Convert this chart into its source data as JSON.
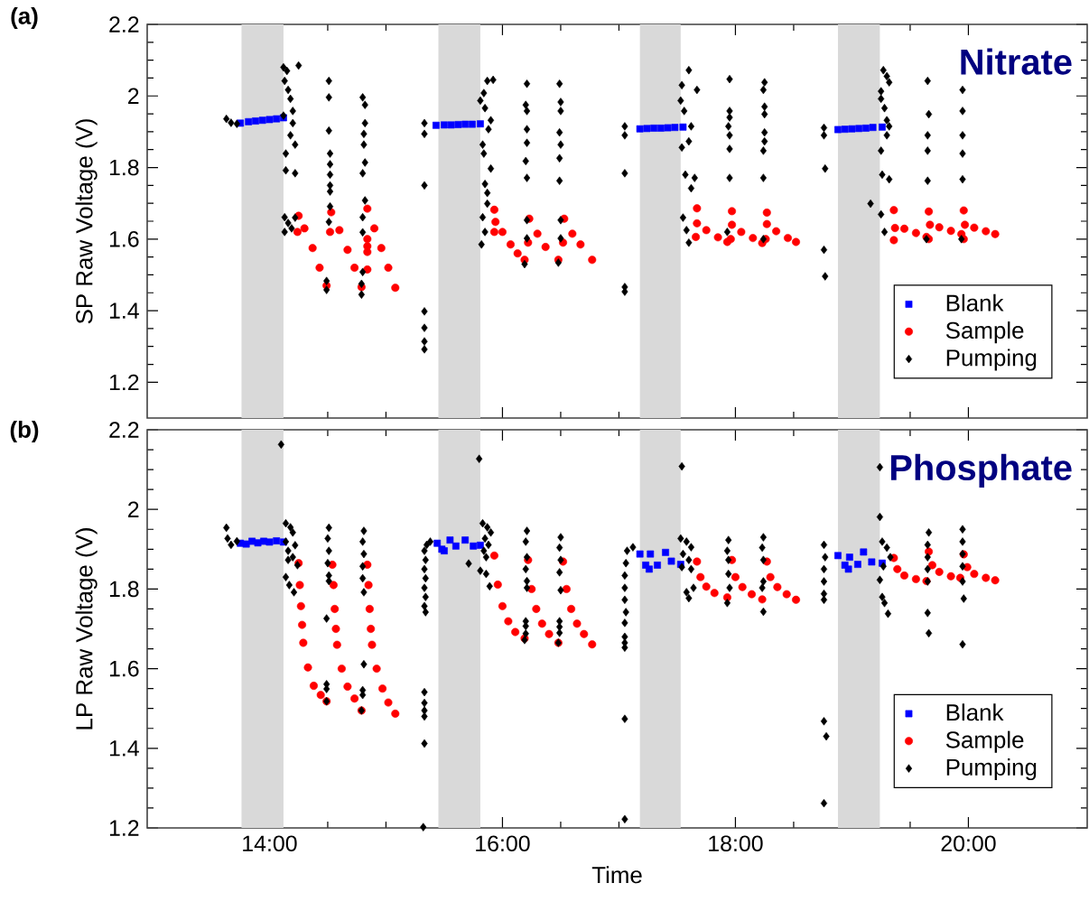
{
  "chart_data": [
    {
      "type": "scatter",
      "title": "Nitrate",
      "ylabel": "SP Raw Voltage (V)",
      "annotations": [
        "(a)"
      ],
      "tick_labels": "y",
      "legend": "bottom right",
      "xlim": [
        12.95,
        21.02
      ],
      "ylim": [
        1.1,
        2.2
      ],
      "xticks": [
        {
          "value": 14,
          "label": null
        },
        {
          "value": 16,
          "label": null
        },
        {
          "value": 18,
          "label": null
        },
        {
          "value": 20,
          "label": null
        }
      ],
      "yticks": [
        1.2,
        1.4,
        1.6,
        1.8,
        2,
        2.2
      ],
      "bands": [
        {
          "axis": "x",
          "from": 13.76,
          "to": 14.12,
          "color": "#d9d9d9"
        },
        {
          "axis": "x",
          "from": 15.45,
          "to": 15.81,
          "color": "#d9d9d9"
        },
        {
          "axis": "x",
          "from": 17.18,
          "to": 17.53,
          "color": "#d9d9d9"
        },
        {
          "axis": "x",
          "from": 18.88,
          "to": 19.24,
          "color": "#d9d9d9"
        }
      ],
      "series": [
        {
          "name": "Blank",
          "marker": "square",
          "color": "#0000ff",
          "x": [
            13.75,
            13.82,
            13.88,
            13.94,
            14.0,
            14.06,
            14.12,
            15.43,
            15.5,
            15.56,
            15.62,
            15.68,
            15.74,
            15.81,
            17.18,
            17.24,
            17.3,
            17.36,
            17.42,
            17.48,
            17.55,
            18.88,
            18.94,
            19.0,
            19.06,
            19.12,
            19.18,
            19.26
          ],
          "values": [
            1.924,
            1.928,
            1.93,
            1.932,
            1.934,
            1.936,
            1.939,
            1.918,
            1.919,
            1.919,
            1.92,
            1.921,
            1.921,
            1.922,
            1.908,
            1.909,
            1.91,
            1.91,
            1.911,
            1.912,
            1.913,
            1.906,
            1.907,
            1.908,
            1.909,
            1.91,
            1.912,
            1.913
          ]
        },
        {
          "name": "Sample",
          "marker": "circle",
          "color": "#ff0000",
          "x": [
            14.24,
            14.25,
            14.3,
            14.37,
            14.43,
            14.49,
            14.52,
            14.53,
            14.6,
            14.67,
            14.73,
            14.79,
            14.84,
            14.84,
            14.84,
            14.84,
            14.84,
            14.9,
            14.96,
            15.02,
            15.08,
            15.93,
            15.93,
            15.94,
            16.0,
            16.07,
            16.13,
            16.19,
            16.22,
            16.23,
            16.3,
            16.37,
            16.48,
            16.52,
            16.53,
            16.6,
            16.67,
            16.77,
            17.67,
            17.66,
            17.67,
            17.75,
            17.85,
            17.93,
            17.97,
            17.96,
            17.97,
            18.05,
            18.15,
            18.23,
            18.27,
            18.26,
            18.27,
            18.35,
            18.45,
            18.52,
            19.36,
            19.36,
            19.37,
            19.45,
            19.55,
            19.64,
            19.66,
            19.66,
            19.67,
            19.75,
            19.85,
            19.94,
            19.96,
            19.96,
            19.97,
            20.05,
            20.15,
            20.23
          ],
          "values": [
            1.62,
            1.665,
            1.63,
            1.575,
            1.52,
            1.47,
            1.62,
            1.675,
            1.625,
            1.57,
            1.52,
            1.466,
            1.515,
            1.564,
            1.58,
            1.6,
            1.685,
            1.63,
            1.575,
            1.52,
            1.464,
            1.682,
            1.62,
            1.648,
            1.62,
            1.585,
            1.56,
            1.542,
            1.59,
            1.657,
            1.615,
            1.578,
            1.542,
            1.59,
            1.657,
            1.615,
            1.585,
            1.542,
            1.686,
            1.606,
            1.644,
            1.625,
            1.605,
            1.592,
            1.678,
            1.6,
            1.64,
            1.62,
            1.603,
            1.589,
            1.674,
            1.6,
            1.642,
            1.622,
            1.603,
            1.592,
            1.681,
            1.597,
            1.631,
            1.629,
            1.617,
            1.606,
            1.677,
            1.6,
            1.64,
            1.633,
            1.623,
            1.614,
            1.68,
            1.6,
            1.64,
            1.632,
            1.622,
            1.614
          ]
        },
        {
          "name": "Pumping",
          "marker": "diamond",
          "color": "#000000",
          "x": [
            13.63,
            13.67,
            13.72,
            14.12,
            14.15,
            14.13,
            14.16,
            14.18,
            14.2,
            14.12,
            14.2,
            14.18,
            14.22,
            14.14,
            14.14,
            14.22,
            14.25,
            14.13,
            14.16,
            14.19,
            14.13,
            14.22,
            14.51,
            14.51,
            14.51,
            14.52,
            14.52,
            14.52,
            14.52,
            14.52,
            14.52,
            14.51,
            14.49,
            14.49,
            14.8,
            14.82,
            14.82,
            14.81,
            14.81,
            14.82,
            14.8,
            14.82,
            14.8,
            14.8,
            14.8,
            14.79,
            14.79,
            15.33,
            15.33,
            15.33,
            15.33,
            15.33,
            15.33,
            15.33,
            15.87,
            15.92,
            15.84,
            15.81,
            15.85,
            15.9,
            15.88,
            15.83,
            15.84,
            15.9,
            15.85,
            15.87,
            15.87,
            15.83,
            15.85,
            15.82,
            16.21,
            16.2,
            16.21,
            16.21,
            16.21,
            16.2,
            16.21,
            16.21,
            16.21,
            16.19,
            16.49,
            16.5,
            16.5,
            16.49,
            16.5,
            16.49,
            16.49,
            16.5,
            16.5,
            16.48,
            17.05,
            17.05,
            17.05,
            17.05,
            17.05,
            17.6,
            17.54,
            17.67,
            17.53,
            17.56,
            17.62,
            17.6,
            17.54,
            17.57,
            17.65,
            17.62,
            17.55,
            17.58,
            17.6,
            17.95,
            17.95,
            17.95,
            17.94,
            17.95,
            17.95,
            17.95,
            17.93,
            18.25,
            18.24,
            18.25,
            18.25,
            18.25,
            18.25,
            18.24,
            18.24,
            18.24,
            18.76,
            18.76,
            18.77,
            18.76,
            18.77,
            19.16,
            19.27,
            19.3,
            19.32,
            19.25,
            19.25,
            19.28,
            19.3,
            19.32,
            19.3,
            19.25,
            19.26,
            19.32,
            19.25,
            19.28,
            19.65,
            19.66,
            19.65,
            19.65,
            19.65,
            19.64,
            19.95,
            19.95,
            19.95,
            19.95,
            19.95,
            19.94
          ],
          "values": [
            1.936,
            1.925,
            1.922,
            2.08,
            2.07,
            2.042,
            2.017,
            1.992,
            1.958,
            1.945,
            1.924,
            1.89,
            1.864,
            1.839,
            1.792,
            1.784,
            2.085,
            1.661,
            1.645,
            1.63,
            1.62,
            1.66,
            2.042,
            1.996,
            1.903,
            1.839,
            1.809,
            1.78,
            1.75,
            1.733,
            1.691,
            1.648,
            1.483,
            1.458,
            1.996,
            1.975,
            1.924,
            1.894,
            1.864,
            1.814,
            1.784,
            1.708,
            1.661,
            1.619,
            1.508,
            1.475,
            1.445,
            1.924,
            1.894,
            1.75,
            1.398,
            1.352,
            1.314,
            1.292,
            2.042,
            2.045,
            2.008,
            1.987,
            1.966,
            1.932,
            1.907,
            1.864,
            1.839,
            1.797,
            1.754,
            1.729,
            1.699,
            1.661,
            1.62,
            1.585,
            2.034,
            1.975,
            1.958,
            1.907,
            1.869,
            1.818,
            1.771,
            1.653,
            1.602,
            1.53,
            2.034,
            1.983,
            1.958,
            1.898,
            1.864,
            1.826,
            1.763,
            1.653,
            1.602,
            1.534,
            1.915,
            1.89,
            1.784,
            1.466,
            1.453,
            2.072,
            2.03,
            2.017,
            1.987,
            1.958,
            1.915,
            1.873,
            1.856,
            1.78,
            1.771,
            1.742,
            1.66,
            1.625,
            1.59,
            2.047,
            1.958,
            1.94,
            1.915,
            1.89,
            1.852,
            1.771,
            1.62,
            2.038,
            2.017,
            1.97,
            1.949,
            1.898,
            1.873,
            1.847,
            1.771,
            1.6,
            1.911,
            1.89,
            1.797,
            1.57,
            1.496,
            1.699,
            2.072,
            2.055,
            2.038,
            2.013,
            1.992,
            1.966,
            1.932,
            1.915,
            1.89,
            1.847,
            1.78,
            1.767,
            1.669,
            1.62,
            2.042,
            1.949,
            1.89,
            1.847,
            1.763,
            1.6,
            2.017,
            1.958,
            1.89,
            1.839,
            1.767,
            1.6
          ]
        }
      ]
    },
    {
      "type": "scatter",
      "title": "Phosphate",
      "xlabel": "Time",
      "ylabel": "LP Raw Voltage (V)",
      "annotations": [
        "(b)"
      ],
      "legend": "bottom right",
      "xlim": [
        12.95,
        21.02
      ],
      "ylim": [
        1.2,
        2.2
      ],
      "xticks": [
        {
          "value": 14,
          "label": "14:00"
        },
        {
          "value": 16,
          "label": "16:00"
        },
        {
          "value": 18,
          "label": "18:00"
        },
        {
          "value": 20,
          "label": "20:00"
        }
      ],
      "yticks": [
        1.2,
        1.4,
        1.6,
        1.8,
        2,
        2.2
      ],
      "bands": [
        {
          "axis": "x",
          "from": 13.76,
          "to": 14.12,
          "color": "#d9d9d9"
        },
        {
          "axis": "x",
          "from": 15.45,
          "to": 15.81,
          "color": "#d9d9d9"
        },
        {
          "axis": "x",
          "from": 17.18,
          "to": 17.53,
          "color": "#d9d9d9"
        },
        {
          "axis": "x",
          "from": 18.88,
          "to": 19.24,
          "color": "#d9d9d9"
        }
      ],
      "series": [
        {
          "name": "Blank",
          "marker": "square",
          "color": "#0000ff",
          "x": [
            13.75,
            13.8,
            13.85,
            13.9,
            13.95,
            14.0,
            14.06,
            14.12,
            15.44,
            15.48,
            15.5,
            15.55,
            15.6,
            15.68,
            15.75,
            15.81,
            17.18,
            17.23,
            17.26,
            17.27,
            17.33,
            17.4,
            17.45,
            17.53,
            18.88,
            18.94,
            18.97,
            18.98,
            19.05,
            19.1,
            19.17,
            19.26
          ],
          "values": [
            1.915,
            1.913,
            1.92,
            1.916,
            1.92,
            1.918,
            1.921,
            1.918,
            1.915,
            1.9,
            1.896,
            1.923,
            1.908,
            1.923,
            1.908,
            1.91,
            1.888,
            1.86,
            1.85,
            1.888,
            1.86,
            1.892,
            1.87,
            1.862,
            1.884,
            1.86,
            1.85,
            1.88,
            1.862,
            1.893,
            1.868,
            1.865
          ]
        },
        {
          "name": "Sample",
          "marker": "circle",
          "color": "#ff0000",
          "x": [
            14.25,
            14.27,
            14.29,
            14.33,
            14.38,
            14.44,
            14.49,
            14.54,
            14.56,
            14.58,
            14.62,
            14.67,
            14.73,
            14.79,
            14.84,
            14.86,
            14.88,
            14.92,
            14.97,
            15.02,
            15.08,
            15.93,
            15.96,
            16.0,
            16.05,
            16.11,
            16.19,
            16.22,
            16.25,
            16.29,
            16.34,
            16.4,
            16.48,
            16.52,
            16.55,
            16.59,
            16.64,
            16.7,
            16.77,
            17.67,
            17.7,
            17.75,
            17.82,
            17.93,
            17.97,
            18.0,
            18.06,
            18.14,
            18.23,
            18.27,
            18.3,
            18.36,
            18.44,
            18.52,
            19.36,
            19.39,
            19.45,
            19.55,
            19.64,
            19.66,
            19.69,
            19.75,
            19.85,
            19.93,
            19.96,
            19.99,
            20.05,
            20.15,
            20.23,
            14.26,
            14.28,
            14.55,
            14.57,
            14.85,
            14.87
          ],
          "values": [
            1.865,
            1.757,
            1.665,
            1.603,
            1.557,
            1.534,
            1.518,
            1.861,
            1.75,
            1.66,
            1.6,
            1.555,
            1.525,
            1.495,
            1.861,
            1.75,
            1.66,
            1.6,
            1.55,
            1.515,
            1.487,
            1.884,
            1.811,
            1.757,
            1.719,
            1.692,
            1.676,
            1.873,
            1.8,
            1.75,
            1.713,
            1.687,
            1.665,
            1.869,
            1.8,
            1.75,
            1.713,
            1.687,
            1.661,
            1.869,
            1.83,
            1.806,
            1.79,
            1.779,
            1.873,
            1.83,
            1.805,
            1.787,
            1.774,
            1.869,
            1.83,
            1.805,
            1.787,
            1.773,
            1.878,
            1.85,
            1.834,
            1.825,
            1.82,
            1.894,
            1.86,
            1.843,
            1.832,
            1.828,
            1.887,
            1.855,
            1.838,
            1.828,
            1.822,
            1.81,
            1.71,
            1.81,
            1.7,
            1.81,
            1.7
          ]
        },
        {
          "name": "Pumping",
          "marker": "diamond",
          "color": "#000000",
          "x": [
            13.63,
            13.64,
            13.67,
            13.72,
            14.1,
            14.14,
            14.18,
            14.2,
            14.14,
            14.22,
            14.16,
            14.2,
            14.16,
            14.24,
            14.14,
            14.17,
            14.21,
            14.51,
            14.5,
            14.51,
            14.5,
            14.51,
            14.51,
            14.49,
            14.49,
            14.49,
            14.49,
            14.81,
            14.8,
            14.81,
            14.8,
            14.8,
            14.81,
            14.81,
            14.8,
            14.8,
            14.79,
            15.35,
            15.33,
            15.34,
            15.33,
            15.34,
            15.33,
            15.34,
            15.33,
            15.34,
            15.33,
            15.33,
            15.33,
            15.33,
            15.33,
            15.32,
            15.38,
            15.8,
            15.71,
            15.83,
            15.87,
            15.9,
            15.85,
            15.88,
            15.84,
            15.86,
            15.81,
            15.86,
            15.89,
            16.21,
            16.2,
            16.21,
            16.2,
            16.21,
            16.21,
            16.2,
            16.2,
            16.2,
            16.19,
            16.5,
            16.49,
            16.5,
            16.49,
            16.5,
            16.49,
            16.49,
            16.49,
            16.48,
            17.07,
            17.12,
            17.06,
            17.05,
            17.05,
            17.05,
            17.06,
            17.05,
            17.05,
            17.05,
            17.05,
            17.05,
            17.05,
            17.54,
            17.53,
            17.58,
            17.62,
            17.55,
            17.6,
            17.54,
            17.62,
            17.64,
            17.58,
            17.6,
            17.94,
            17.93,
            17.94,
            17.94,
            17.95,
            17.93,
            18.24,
            18.23,
            18.24,
            18.24,
            18.23,
            18.24,
            18.76,
            18.77,
            18.76,
            18.76,
            18.76,
            18.76,
            18.76,
            18.78,
            18.76,
            19.24,
            19.24,
            19.26,
            19.3,
            19.33,
            19.27,
            19.24,
            19.26,
            19.28,
            19.31,
            19.66,
            19.65,
            19.65,
            19.65,
            19.65,
            19.65,
            19.66,
            19.95,
            19.95,
            19.95,
            19.95,
            19.95,
            19.96,
            19.95
          ],
          "values": [
            1.954,
            1.927,
            1.911,
            1.92,
            2.163,
            1.965,
            1.955,
            1.942,
            1.919,
            1.91,
            1.896,
            1.88,
            1.873,
            1.86,
            1.83,
            1.81,
            1.792,
            1.954,
            1.927,
            1.896,
            1.865,
            1.834,
            1.82,
            1.726,
            1.561,
            1.549,
            1.518,
            1.946,
            1.919,
            1.888,
            1.857,
            1.827,
            1.792,
            1.611,
            1.546,
            1.534,
            1.495,
            1.911,
            1.896,
            1.873,
            1.85,
            1.827,
            1.803,
            1.78,
            1.757,
            1.742,
            1.541,
            1.514,
            1.495,
            1.48,
            1.412,
            1.202,
            1.919,
            2.127,
            1.864,
            1.965,
            1.955,
            1.942,
            1.927,
            1.911,
            1.896,
            1.88,
            1.846,
            1.838,
            1.807,
            1.946,
            1.919,
            1.88,
            1.85,
            1.82,
            1.803,
            1.719,
            1.707,
            1.688,
            1.672,
            1.93,
            1.904,
            1.873,
            1.842,
            1.797,
            1.719,
            1.705,
            1.69,
            1.665,
            1.896,
            1.905,
            1.865,
            1.834,
            1.803,
            1.773,
            1.742,
            1.715,
            1.68,
            1.665,
            1.653,
            1.474,
            1.222,
            2.108,
            1.927,
            1.919,
            1.905,
            1.888,
            1.873,
            1.855,
            1.85,
            1.803,
            1.792,
            1.777,
            1.923,
            1.896,
            1.873,
            1.838,
            1.803,
            1.765,
            1.93,
            1.904,
            1.873,
            1.819,
            1.803,
            1.743,
            1.911,
            1.88,
            1.85,
            1.819,
            1.788,
            1.773,
            1.468,
            1.43,
            1.262,
            2.106,
            1.981,
            1.919,
            1.904,
            1.88,
            1.857,
            1.823,
            1.78,
            1.765,
            1.738,
            1.942,
            1.911,
            1.88,
            1.85,
            1.819,
            1.74,
            1.689,
            1.95,
            1.919,
            1.888,
            1.857,
            1.819,
            1.776,
            1.661
          ]
        }
      ]
    }
  ]
}
